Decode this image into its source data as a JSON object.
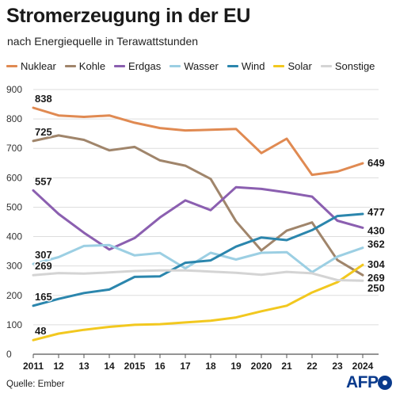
{
  "header": {
    "title": "Stromerzeugung in der EU",
    "subtitle": "nach Energiequelle in Terawattstunden"
  },
  "footer": {
    "source": "Quelle: Ember",
    "logo_text": "AFP"
  },
  "chart_data": {
    "type": "line",
    "title": "Stromerzeugung in der EU",
    "subtitle": "nach Energiequelle in Terawattstunden",
    "xlabel": "",
    "ylabel": "",
    "x": [
      2011,
      2012,
      2013,
      2014,
      2015,
      2016,
      2017,
      2018,
      2019,
      2020,
      2021,
      2022,
      2023,
      2024
    ],
    "x_tick_labels": [
      "2011",
      "12",
      "13",
      "14",
      "2015",
      "16",
      "17",
      "18",
      "19",
      "2020",
      "21",
      "22",
      "23",
      "2024"
    ],
    "ylim": [
      0,
      900
    ],
    "y_ticks": [
      0,
      100,
      200,
      300,
      400,
      500,
      600,
      700,
      800,
      900
    ],
    "grid": true,
    "legend_position": "top",
    "series": [
      {
        "name": "Nuklear",
        "color": "#e08a52",
        "values": [
          838,
          812,
          807,
          812,
          787,
          769,
          761,
          763,
          766,
          684,
          733,
          610,
          621,
          649
        ],
        "start_label": "838",
        "end_label": "649"
      },
      {
        "name": "Kohle",
        "color": "#a0856b",
        "values": [
          725,
          744,
          729,
          693,
          705,
          659,
          641,
          596,
          452,
          353,
          420,
          448,
          320,
          269
        ],
        "start_label": "725",
        "end_label": "269"
      },
      {
        "name": "Erdgas",
        "color": "#8b5fb0",
        "values": [
          557,
          477,
          413,
          356,
          395,
          465,
          523,
          490,
          568,
          562,
          550,
          536,
          454,
          430
        ],
        "start_label": "557",
        "end_label": "430"
      },
      {
        "name": "Wasser",
        "color": "#9ccfe3",
        "values": [
          307,
          330,
          368,
          371,
          336,
          344,
          292,
          345,
          322,
          345,
          347,
          279,
          332,
          362
        ],
        "start_label": "307",
        "end_label": "362"
      },
      {
        "name": "Wind",
        "color": "#2b86ad",
        "values": [
          165,
          188,
          208,
          220,
          263,
          265,
          311,
          319,
          366,
          397,
          388,
          422,
          470,
          477
        ],
        "start_label": "165",
        "end_label": "477"
      },
      {
        "name": "Solar",
        "color": "#f2c81f",
        "values": [
          48,
          70,
          83,
          93,
          100,
          102,
          108,
          114,
          125,
          146,
          165,
          210,
          245,
          304
        ],
        "start_label": "48",
        "end_label": "304"
      },
      {
        "name": "Sonstige",
        "color": "#d4d4d4",
        "values": [
          269,
          276,
          274,
          278,
          283,
          285,
          285,
          281,
          277,
          270,
          280,
          275,
          252,
          250
        ],
        "start_label": "269",
        "end_label": "250"
      }
    ]
  }
}
